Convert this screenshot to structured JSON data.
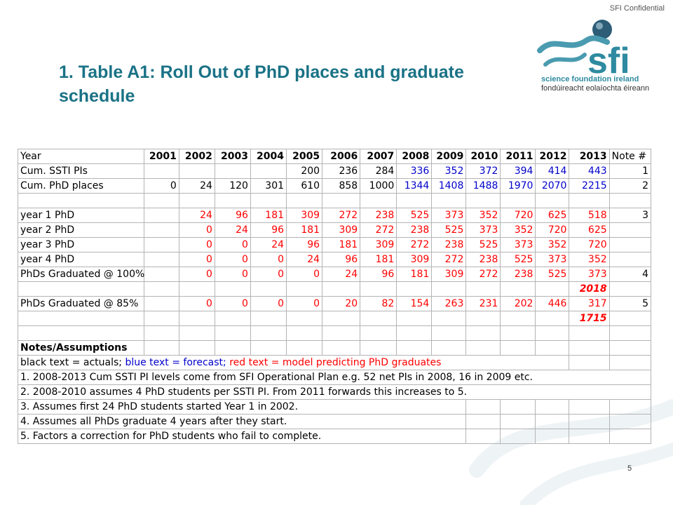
{
  "header": {
    "confidential": "SFI Confidential",
    "title": "1. Table A1: Roll Out of PhD places and graduate schedule",
    "logo_line1": "science foundation ireland",
    "logo_line2": "fondúireacht eolaíochta éireann",
    "logo_wordmark": "sfi"
  },
  "colors": {
    "title": "#1a7286",
    "actual": "#000000",
    "forecast": "#0000cc",
    "model": "#ff0000",
    "logo": "#2e8aa0"
  },
  "page_number": "5",
  "table": {
    "header_row": [
      "Year",
      "2001",
      "2002",
      "2003",
      "2004",
      "2005",
      "2006",
      "2007",
      "2008",
      "2009",
      "2010",
      "2011",
      "2012",
      "2013",
      "Note #"
    ],
    "rows": [
      {
        "label": "Cum. SSTI PIs",
        "values": [
          "",
          "",
          "",
          "",
          "200",
          "236",
          "284",
          "336",
          "352",
          "372",
          "394",
          "414",
          "443"
        ],
        "note": "1"
      },
      {
        "label": "Cum. PhD places",
        "values": [
          "0",
          "24",
          "120",
          "301",
          "610",
          "858",
          "1000",
          "1344",
          "1408",
          "1488",
          "1970",
          "2070",
          "2215"
        ],
        "note": "2"
      },
      {
        "label": "year 1 PhD",
        "values": [
          "",
          "24",
          "96",
          "181",
          "309",
          "272",
          "238",
          "525",
          "373",
          "352",
          "720",
          "625",
          "518"
        ],
        "note": "3"
      },
      {
        "label": "year 2 PhD",
        "values": [
          "",
          "0",
          "24",
          "96",
          "181",
          "309",
          "272",
          "238",
          "525",
          "373",
          "352",
          "720",
          "625"
        ],
        "note": ""
      },
      {
        "label": "year 3 PhD",
        "values": [
          "",
          "0",
          "0",
          "24",
          "96",
          "181",
          "309",
          "272",
          "238",
          "525",
          "373",
          "352",
          "720"
        ],
        "note": ""
      },
      {
        "label": "year 4 PhD",
        "values": [
          "",
          "0",
          "0",
          "0",
          "24",
          "96",
          "181",
          "309",
          "272",
          "238",
          "525",
          "373",
          "352"
        ],
        "note": ""
      },
      {
        "label": "PhDs Graduated @ 100%",
        "values": [
          "",
          "0",
          "0",
          "0",
          "0",
          "24",
          "96",
          "181",
          "309",
          "272",
          "238",
          "525",
          "373"
        ],
        "note": "4"
      },
      {
        "label": "PhDs Graduated @ 85%",
        "values": [
          "",
          "0",
          "0",
          "0",
          "0",
          "20",
          "82",
          "154",
          "263",
          "231",
          "202",
          "446",
          "317"
        ],
        "note": "5"
      }
    ],
    "total_100": "2018",
    "total_85": "1715",
    "notes_heading": "Notes/Assumptions",
    "legend": {
      "black": "black text = actuals;",
      "blue": "blue text = forecast;",
      "red": "red text = model predicting PhD graduates"
    },
    "notes": [
      "1. 2008-2013 Cum SSTI PI levels come from SFI Operational Plan e.g. 52 net PIs in 2008, 16 in 2009 etc.",
      "2. 2008-2010 assumes 4 PhD students per SSTI PI. From 2011 forwards this increases to 5.",
      "3. Assumes first 24 PhD students started Year 1 in 2002.",
      "4. Assumes all PhDs graduate 4 years after they start.",
      "5. Factors a correction for PhD students who fail to complete."
    ]
  }
}
